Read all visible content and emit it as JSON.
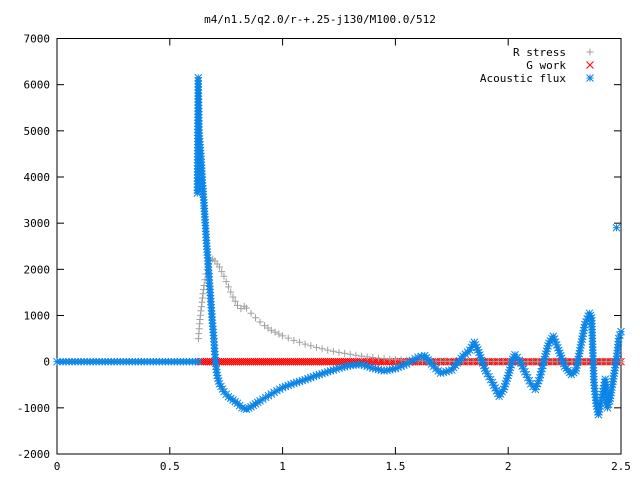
{
  "chart_data": {
    "type": "scatter",
    "title": "m4/n1.5/q2.0/r-+.25-j130/M100.0/512",
    "xlabel": "",
    "ylabel": "",
    "xlim": [
      0,
      2.5
    ],
    "ylim": [
      -2000,
      7000
    ],
    "x_ticks": [
      0,
      0.5,
      1,
      1.5,
      2,
      2.5
    ],
    "x_tick_labels": [
      "0",
      "0.5",
      "1",
      "1.5",
      "2",
      "2.5"
    ],
    "y_ticks": [
      -2000,
      -1000,
      0,
      1000,
      2000,
      3000,
      4000,
      5000,
      6000,
      7000
    ],
    "y_tick_labels": [
      "-2000",
      "-1000",
      "0",
      "1000",
      "2000",
      "3000",
      "4000",
      "5000",
      "6000",
      "7000"
    ],
    "grid": false,
    "legend_position": "top-right",
    "series": [
      {
        "name": "R stress",
        "marker": "plus",
        "color": "#a0a0a0",
        "points": [
          [
            0.627,
            500
          ],
          [
            0.632,
            820
          ],
          [
            0.638,
            1100
          ],
          [
            0.645,
            1380
          ],
          [
            0.652,
            1650
          ],
          [
            0.66,
            1900
          ],
          [
            0.67,
            2100
          ],
          [
            0.68,
            2200
          ],
          [
            0.69,
            2220
          ],
          [
            0.7,
            2180
          ],
          [
            0.72,
            2050
          ],
          [
            0.74,
            1850
          ],
          [
            0.76,
            1620
          ],
          [
            0.78,
            1400
          ],
          [
            0.8,
            1220
          ],
          [
            0.815,
            1150
          ],
          [
            0.83,
            1200
          ],
          [
            0.84,
            1160
          ],
          [
            0.86,
            1050
          ],
          [
            0.88,
            950
          ],
          [
            0.9,
            860
          ],
          [
            0.92,
            780
          ],
          [
            0.95,
            680
          ],
          [
            1.0,
            560
          ],
          [
            1.05,
            460
          ],
          [
            1.1,
            380
          ],
          [
            1.15,
            310
          ],
          [
            1.2,
            250
          ],
          [
            1.25,
            200
          ],
          [
            1.3,
            160
          ],
          [
            1.35,
            120
          ],
          [
            1.4,
            90
          ],
          [
            1.45,
            65
          ],
          [
            1.5,
            45
          ],
          [
            1.55,
            30
          ],
          [
            1.6,
            20
          ],
          [
            1.7,
            10
          ],
          [
            1.8,
            5
          ],
          [
            2.0,
            2
          ],
          [
            2.5,
            0
          ]
        ]
      },
      {
        "name": "G work",
        "marker": "cross",
        "color": "#ff0000",
        "points": [
          [
            0.627,
            0
          ],
          [
            2.5,
            0
          ]
        ]
      },
      {
        "name": "Acoustic flux",
        "marker": "star",
        "color": "#0a84e8",
        "points": [
          [
            0.0,
            0
          ],
          [
            0.627,
            0
          ],
          [
            0.622,
            3650
          ],
          [
            0.626,
            6150
          ],
          [
            0.63,
            4950
          ],
          [
            0.634,
            4700
          ],
          [
            0.64,
            4320
          ],
          [
            0.645,
            3870
          ],
          [
            0.652,
            3380
          ],
          [
            0.658,
            2950
          ],
          [
            0.664,
            2500
          ],
          [
            0.67,
            2120
          ],
          [
            0.676,
            1700
          ],
          [
            0.682,
            1300
          ],
          [
            0.688,
            900
          ],
          [
            0.695,
            500
          ],
          [
            0.7,
            150
          ],
          [
            0.705,
            -100
          ],
          [
            0.71,
            -300
          ],
          [
            0.72,
            -480
          ],
          [
            0.74,
            -650
          ],
          [
            0.76,
            -760
          ],
          [
            0.78,
            -830
          ],
          [
            0.8,
            -900
          ],
          [
            0.82,
            -1000
          ],
          [
            0.84,
            -1030
          ],
          [
            0.86,
            -980
          ],
          [
            0.9,
            -850
          ],
          [
            0.95,
            -700
          ],
          [
            1.0,
            -560
          ],
          [
            1.05,
            -470
          ],
          [
            1.1,
            -390
          ],
          [
            1.15,
            -300
          ],
          [
            1.2,
            -220
          ],
          [
            1.25,
            -140
          ],
          [
            1.3,
            -80
          ],
          [
            1.35,
            -60
          ],
          [
            1.4,
            -140
          ],
          [
            1.45,
            -200
          ],
          [
            1.5,
            -150
          ],
          [
            1.55,
            -50
          ],
          [
            1.6,
            100
          ],
          [
            1.63,
            130
          ],
          [
            1.66,
            -50
          ],
          [
            1.7,
            -250
          ],
          [
            1.75,
            -180
          ],
          [
            1.8,
            120
          ],
          [
            1.83,
            250
          ],
          [
            1.85,
            420
          ],
          [
            1.87,
            200
          ],
          [
            1.9,
            -200
          ],
          [
            1.93,
            -450
          ],
          [
            1.96,
            -750
          ],
          [
            1.98,
            -600
          ],
          [
            2.0,
            -300
          ],
          [
            2.02,
            50
          ],
          [
            2.03,
            150
          ],
          [
            2.05,
            30
          ],
          [
            2.08,
            -280
          ],
          [
            2.1,
            -480
          ],
          [
            2.12,
            -600
          ],
          [
            2.14,
            -350
          ],
          [
            2.16,
            50
          ],
          [
            2.18,
            400
          ],
          [
            2.2,
            550
          ],
          [
            2.22,
            300
          ],
          [
            2.25,
            -100
          ],
          [
            2.28,
            -280
          ],
          [
            2.3,
            -200
          ],
          [
            2.32,
            300
          ],
          [
            2.34,
            800
          ],
          [
            2.36,
            1050
          ],
          [
            2.37,
            950
          ],
          [
            2.38,
            -450
          ],
          [
            2.39,
            -900
          ],
          [
            2.4,
            -1150
          ],
          [
            2.41,
            -900
          ],
          [
            2.42,
            -650
          ],
          [
            2.43,
            -380
          ],
          [
            2.44,
            -1000
          ],
          [
            2.45,
            -850
          ],
          [
            2.46,
            -550
          ],
          [
            2.47,
            -250
          ],
          [
            2.48,
            50
          ],
          [
            2.49,
            500
          ],
          [
            2.5,
            650
          ],
          [
            2.48,
            2900
          ]
        ]
      }
    ]
  }
}
